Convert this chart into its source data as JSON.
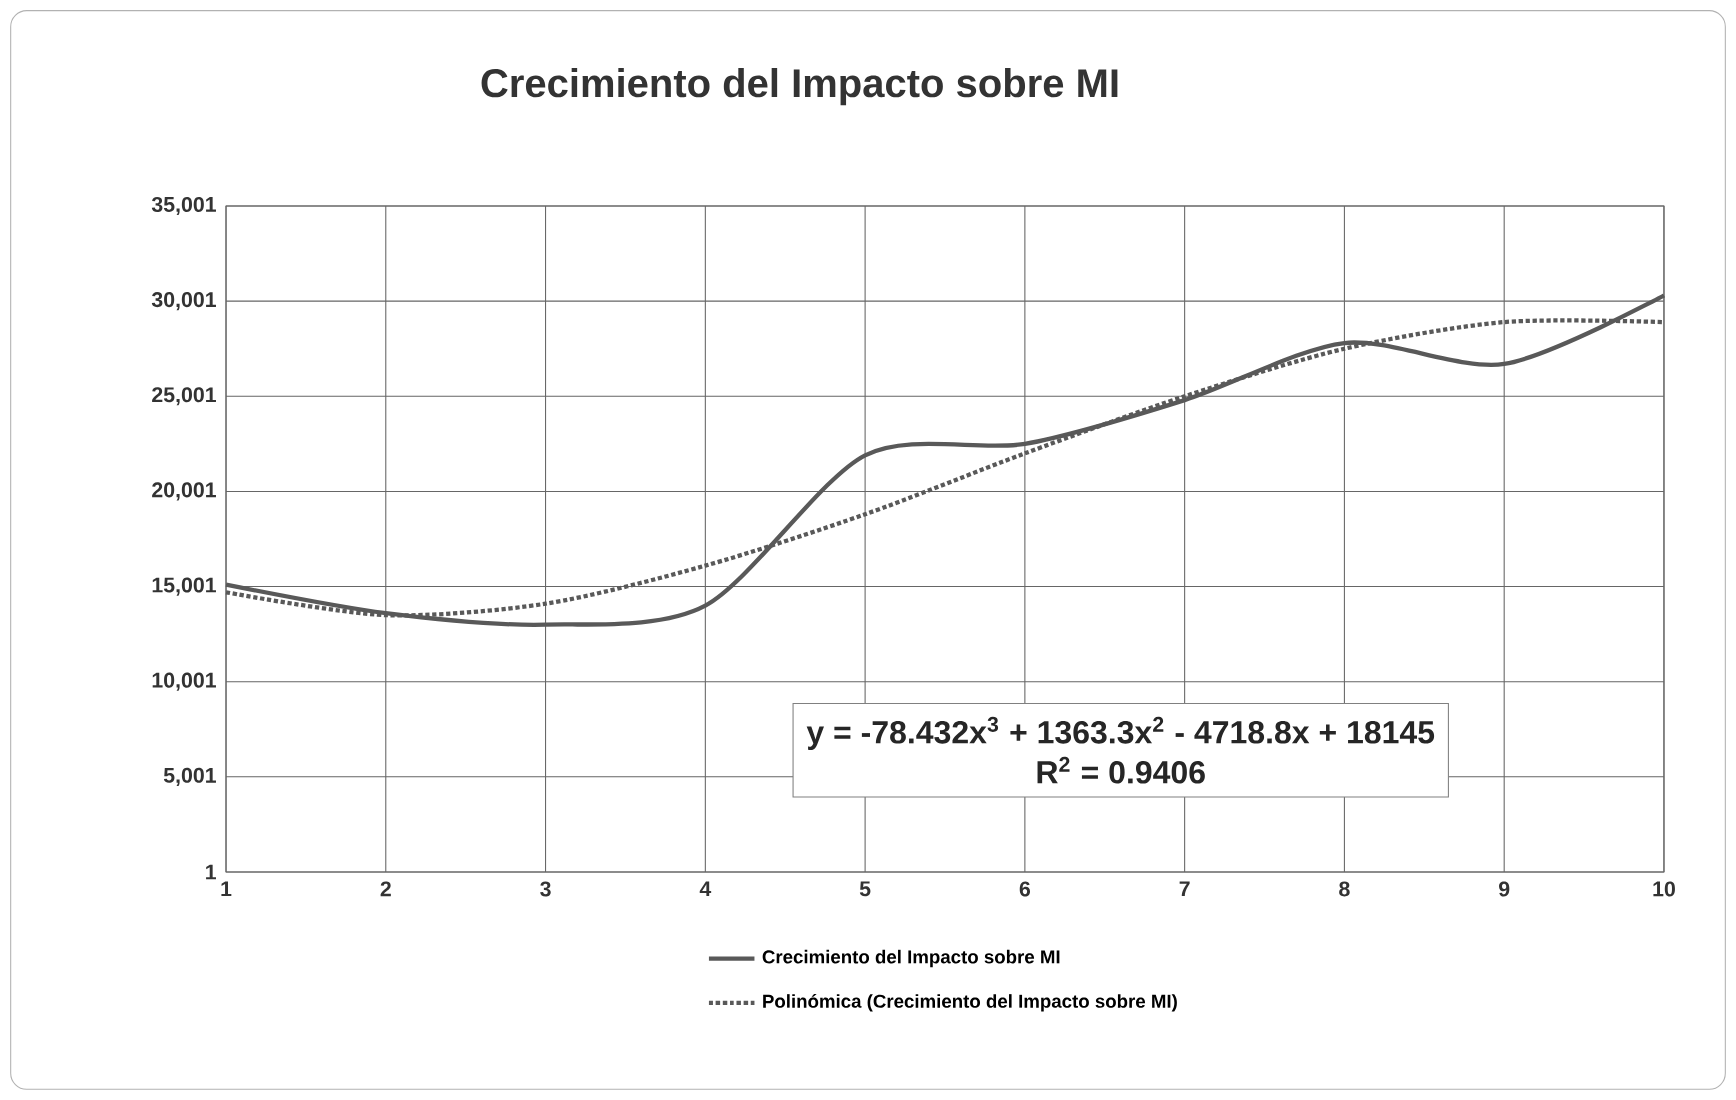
{
  "chart_data": {
    "type": "line",
    "title": "Crecimiento del Impacto sobre MI",
    "x": [
      1,
      2,
      3,
      4,
      5,
      6,
      7,
      8,
      9,
      10
    ],
    "series": [
      {
        "name": "Crecimiento del Impacto sobre MI",
        "color": "#595959",
        "line_style": "solid",
        "values": [
          15100,
          13600,
          13000,
          14000,
          21900,
          22500,
          24800,
          27800,
          26700,
          30300
        ]
      },
      {
        "name": "Polinómica (Crecimiento del Impacto sobre MI)",
        "color": "#595959",
        "line_style": "dotted",
        "values": [
          14700,
          13500,
          14100,
          16100,
          18800,
          22000,
          25000,
          27500,
          28900,
          28900
        ]
      }
    ],
    "xlim": [
      1,
      10
    ],
    "xticks": [
      1,
      2,
      3,
      4,
      5,
      6,
      7,
      8,
      9,
      10
    ],
    "ylim": [
      1,
      35001
    ],
    "yticks": [
      {
        "value": 1,
        "label": "1"
      },
      {
        "value": 5001,
        "label": "5,001"
      },
      {
        "value": 10001,
        "label": "10,001"
      },
      {
        "value": 15001,
        "label": "15,001"
      },
      {
        "value": 20001,
        "label": "20,001"
      },
      {
        "value": 25001,
        "label": "25,001"
      },
      {
        "value": 30001,
        "label": "30,001"
      },
      {
        "value": 35001,
        "label": "35,001"
      }
    ],
    "annotations": [
      "y = -78.432x$^{3}$ + 1363.3x$^{2}$ - 4718.8x + 18145",
      "R$^{2}$ = 0.9406"
    ],
    "grid": true,
    "legend": "bottom",
    "marker": "none"
  }
}
